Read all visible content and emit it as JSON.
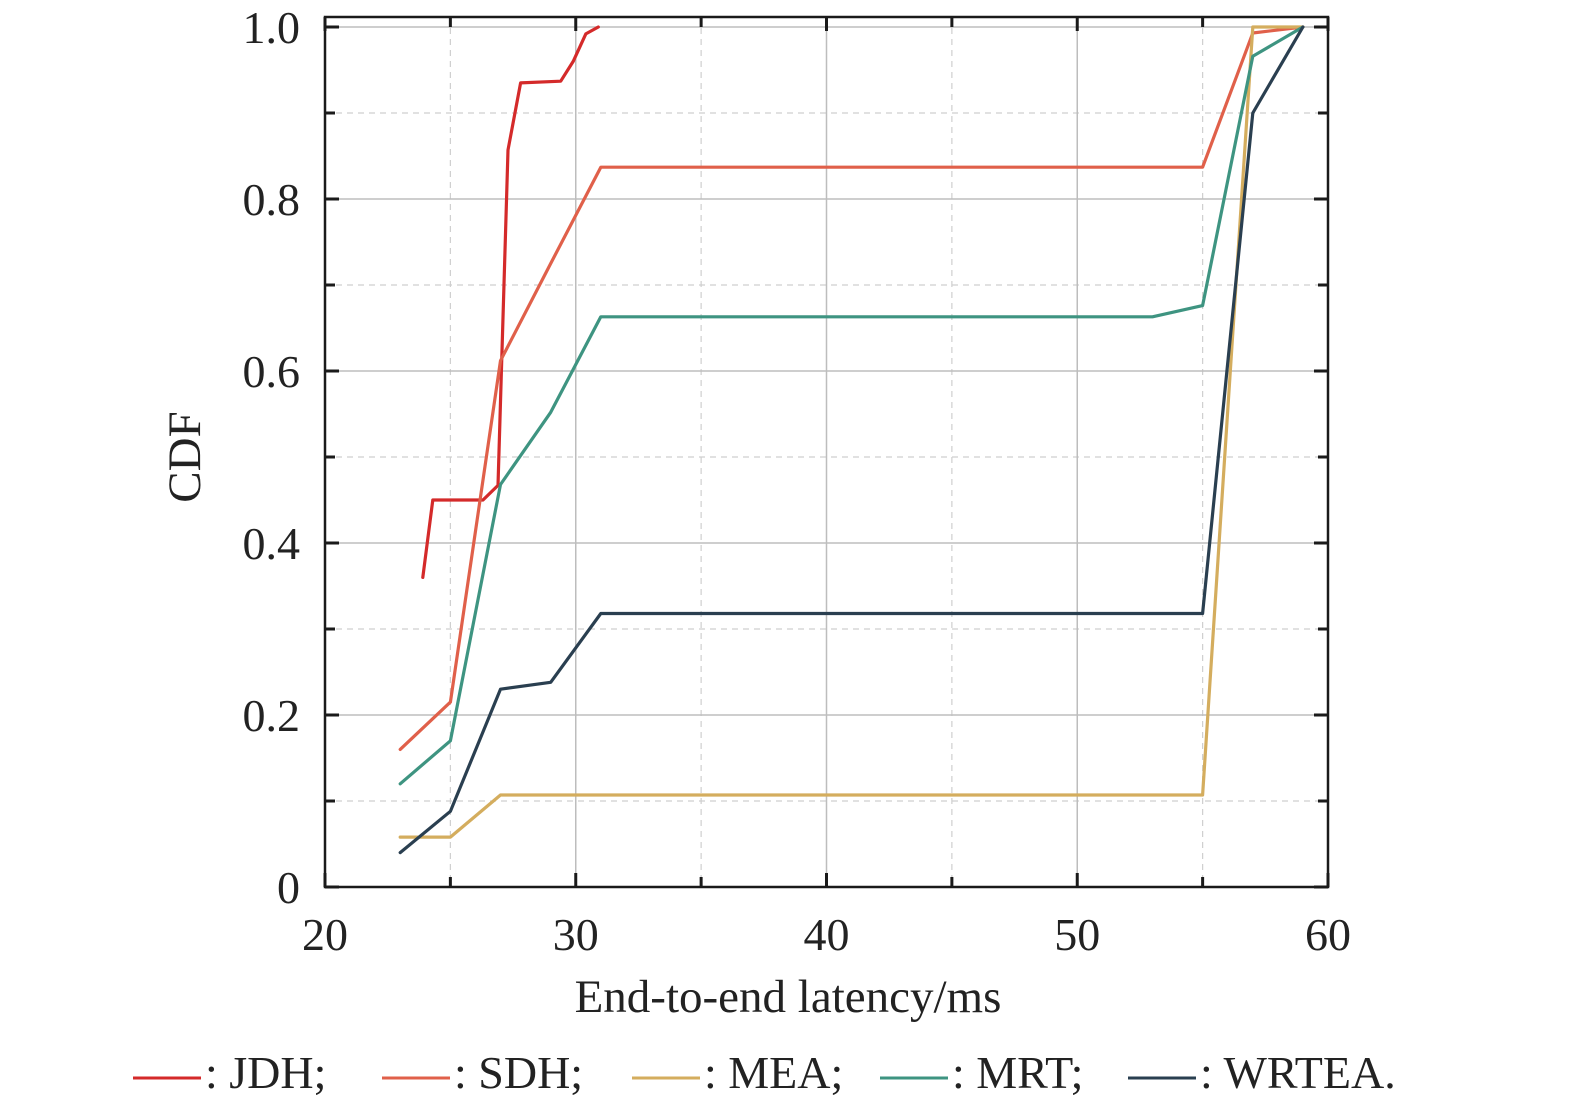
{
  "chart_data": {
    "type": "line",
    "title": "",
    "xlabel": "End-to-end latency/ms",
    "ylabel": "CDF",
    "xlim": [
      20,
      60
    ],
    "ylim": [
      0,
      1.0
    ],
    "xticks": [
      20,
      30,
      40,
      50,
      60
    ],
    "xtick_labels": [
      "20",
      "30",
      "40",
      "50",
      "60"
    ],
    "yticks": [
      0,
      0.2,
      0.4,
      0.6,
      0.8,
      1.0
    ],
    "ytick_labels": [
      "0",
      "0.2",
      "0.4",
      "0.6",
      "0.8",
      "1.0"
    ],
    "grid": true,
    "legend_position": "bottom",
    "series": [
      {
        "name": "JDH",
        "legend_label": "JDH;",
        "color": "#d42a2a",
        "x": [
          23.9,
          24.3,
          26.3,
          26.9,
          27.3,
          27.8,
          29.4,
          29.9,
          30.4,
          30.9
        ],
        "y": [
          0.36,
          0.45,
          0.45,
          0.467,
          0.857,
          0.935,
          0.937,
          0.96,
          0.992,
          1.0
        ]
      },
      {
        "name": "SDH",
        "legend_label": "SDH;",
        "color": "#e0604a",
        "x": [
          23,
          25,
          27,
          29,
          31,
          55,
          57,
          59
        ],
        "y": [
          0.16,
          0.215,
          0.612,
          0.725,
          0.837,
          0.837,
          0.993,
          1.0
        ]
      },
      {
        "name": "MEA",
        "legend_label": "MEA;",
        "color": "#d4ad5e",
        "x": [
          23,
          25,
          27,
          55,
          57,
          59
        ],
        "y": [
          0.058,
          0.058,
          0.107,
          0.107,
          1.0,
          1.0
        ]
      },
      {
        "name": "MRT",
        "legend_label": "MRT;",
        "color": "#3e9481",
        "x": [
          23,
          25,
          27,
          29,
          31,
          53,
          55,
          57,
          59
        ],
        "y": [
          0.12,
          0.17,
          0.468,
          0.552,
          0.663,
          0.663,
          0.676,
          0.966,
          1.0
        ]
      },
      {
        "name": "WRTEA",
        "legend_label": "WRTEA.",
        "color": "#2a3f50",
        "x": [
          23,
          25,
          27,
          29,
          31,
          55,
          57,
          59
        ],
        "y": [
          0.04,
          0.088,
          0.23,
          0.238,
          0.318,
          0.318,
          0.9,
          1.0
        ]
      }
    ]
  }
}
